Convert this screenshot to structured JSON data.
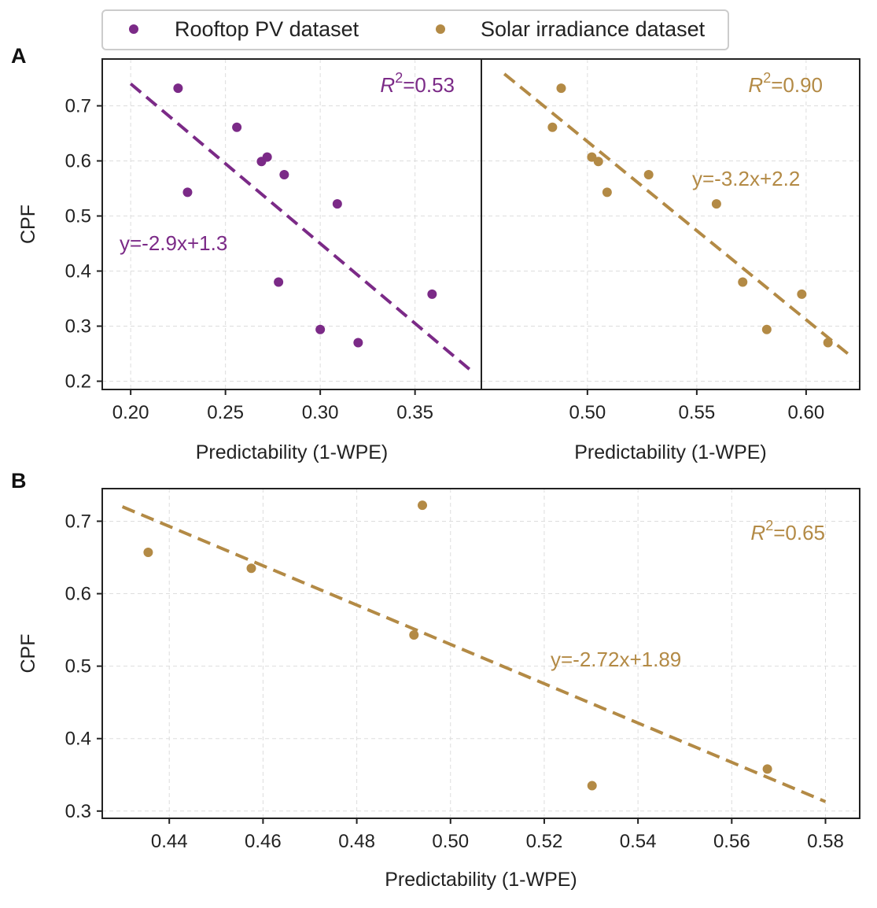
{
  "colors": {
    "rooftop": "#7b2a87",
    "solar": "#b38a45"
  },
  "legend": {
    "items": [
      {
        "label": "Rooftop PV dataset",
        "color": "#7b2a87"
      },
      {
        "label": "Solar irradiance dataset",
        "color": "#b38a45"
      }
    ]
  },
  "panel_labels": {
    "a": "A",
    "b": "B"
  },
  "chart_data": [
    {
      "id": "a-left",
      "type": "scatter",
      "xlabel": "Predictability (1-WPE)",
      "ylabel": "CPF",
      "xlim": [
        0.185,
        0.385
      ],
      "ylim": [
        0.185,
        0.785
      ],
      "xticks": [
        "0.20",
        "0.25",
        "0.30",
        "0.35"
      ],
      "yticks": [
        "0.2",
        "0.3",
        "0.4",
        "0.5",
        "0.6",
        "0.7"
      ],
      "color": "#7b2a87",
      "points": [
        [
          0.225,
          0.732
        ],
        [
          0.23,
          0.543
        ],
        [
          0.256,
          0.661
        ],
        [
          0.269,
          0.599
        ],
        [
          0.272,
          0.607
        ],
        [
          0.278,
          0.38
        ],
        [
          0.281,
          0.575
        ],
        [
          0.3,
          0.294
        ],
        [
          0.309,
          0.522
        ],
        [
          0.32,
          0.27
        ],
        [
          0.359,
          0.358
        ]
      ],
      "fit": {
        "x": [
          0.2,
          0.38
        ],
        "y": [
          0.74,
          0.218
        ]
      },
      "equation": "y=-2.9x+1.3",
      "r2_label": "R",
      "r2_value": "=0.53"
    },
    {
      "id": "a-right",
      "type": "scatter",
      "xlabel": "Predictability (1-WPE)",
      "ylabel": "",
      "xlim": [
        0.4515,
        0.6245
      ],
      "ylim": [
        0.185,
        0.785
      ],
      "xticks": [
        "0.50",
        "0.55",
        "0.60"
      ],
      "yticks": [],
      "color": "#b38a45",
      "points": [
        [
          0.484,
          0.661
        ],
        [
          0.488,
          0.732
        ],
        [
          0.502,
          0.607
        ],
        [
          0.505,
          0.599
        ],
        [
          0.509,
          0.543
        ],
        [
          0.528,
          0.575
        ],
        [
          0.559,
          0.522
        ],
        [
          0.571,
          0.38
        ],
        [
          0.582,
          0.294
        ],
        [
          0.598,
          0.358
        ],
        [
          0.61,
          0.27
        ]
      ],
      "fit": {
        "x": [
          0.462,
          0.62
        ],
        "y": [
          0.758,
          0.247
        ]
      },
      "equation": "y=-3.2x+2.2",
      "r2_label": "R",
      "r2_value": "=0.90"
    },
    {
      "id": "b",
      "type": "scatter",
      "xlabel": "Predictability (1-WPE)",
      "ylabel": "CPF",
      "xlim": [
        0.4257,
        0.5873
      ],
      "ylim": [
        0.29,
        0.745
      ],
      "xticks": [
        "0.44",
        "0.46",
        "0.48",
        "0.50",
        "0.52",
        "0.54",
        "0.56",
        "0.58"
      ],
      "yticks": [
        "0.3",
        "0.4",
        "0.5",
        "0.6",
        "0.7"
      ],
      "color": "#b38a45",
      "points": [
        [
          0.4355,
          0.657
        ],
        [
          0.4575,
          0.635
        ],
        [
          0.4922,
          0.543
        ],
        [
          0.494,
          0.722
        ],
        [
          0.5302,
          0.335
        ],
        [
          0.5676,
          0.358
        ]
      ],
      "fit": {
        "x": [
          0.43,
          0.58
        ],
        "y": [
          0.72,
          0.313
        ]
      },
      "equation": "y=-2.72x+1.89",
      "r2_label": "R",
      "r2_value": "=0.65"
    }
  ]
}
